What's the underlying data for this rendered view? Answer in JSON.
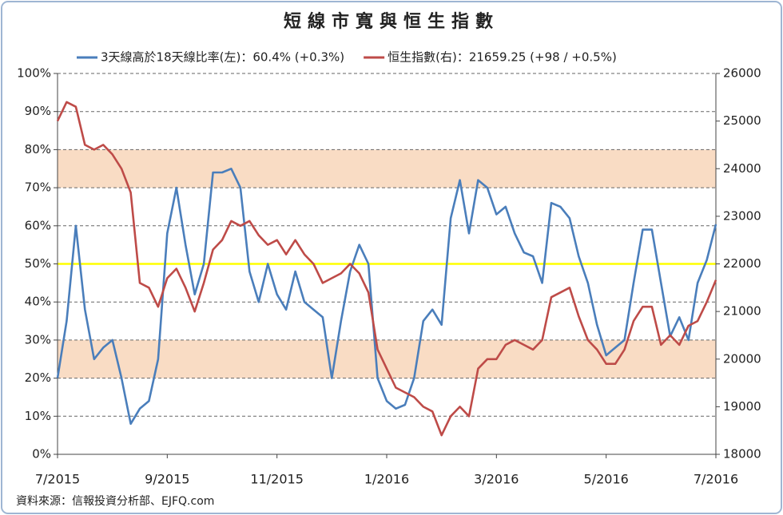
{
  "chart_data": {
    "type": "line",
    "title": "短線市寬與恒生指數",
    "source": "資料來源：信報投資分析部、EJFQ.com",
    "categories": [
      "7/2015",
      null,
      null,
      null,
      null,
      null,
      null,
      null,
      null,
      null,
      null,
      null,
      "9/2015",
      null,
      null,
      null,
      null,
      null,
      null,
      null,
      null,
      null,
      null,
      null,
      "11/2015",
      null,
      null,
      null,
      null,
      null,
      null,
      null,
      null,
      null,
      null,
      null,
      "1/2016",
      null,
      null,
      null,
      null,
      null,
      null,
      null,
      null,
      null,
      null,
      null,
      "3/2016",
      null,
      null,
      null,
      null,
      null,
      null,
      null,
      null,
      null,
      null,
      null,
      "5/2016",
      null,
      null,
      null,
      null,
      null,
      null,
      null,
      null,
      null,
      null,
      null,
      "7/2016"
    ],
    "series": [
      {
        "name": "3天線高於18天線比率(左)：60.4% (+0.3%)",
        "color": "#4a7ebb",
        "axis": "y",
        "values": [
          20,
          35,
          60,
          38,
          25,
          28,
          30,
          20,
          8,
          12,
          14,
          25,
          58,
          70,
          55,
          42,
          50,
          74,
          74,
          75,
          70,
          48,
          40,
          50,
          42,
          38,
          48,
          40,
          38,
          36,
          20,
          35,
          48,
          55,
          50,
          20,
          14,
          12,
          13,
          20,
          35,
          38,
          34,
          62,
          72,
          58,
          72,
          70,
          63,
          65,
          58,
          53,
          52,
          45,
          66,
          65,
          62,
          52,
          45,
          34,
          26,
          28,
          30,
          45,
          59,
          59,
          45,
          31,
          36,
          30,
          45,
          51,
          60.4
        ]
      },
      {
        "name": "恒生指數(右)：21659.25 (+98 / +0.5%)",
        "color": "#be4b48",
        "axis": "y2",
        "values": [
          25000,
          25400,
          25300,
          24500,
          24400,
          24500,
          24300,
          24000,
          23500,
          21600,
          21500,
          21100,
          21700,
          21900,
          21500,
          21000,
          21600,
          22300,
          22500,
          22900,
          22800,
          22900,
          22600,
          22400,
          22500,
          22200,
          22500,
          22200,
          22000,
          21600,
          21700,
          21800,
          22000,
          21800,
          21400,
          20200,
          19800,
          19400,
          19300,
          19200,
          19000,
          18900,
          18400,
          18800,
          19000,
          18800,
          19800,
          20000,
          20000,
          20300,
          20400,
          20300,
          20200,
          20400,
          21300,
          21400,
          21500,
          20900,
          20400,
          20200,
          19900,
          19900,
          20200,
          20800,
          21100,
          21100,
          20300,
          20500,
          20300,
          20700,
          20800,
          21200,
          21659.25
        ]
      }
    ],
    "ylim": [
      0,
      100
    ],
    "yticks": [
      {
        "value": 0,
        "label": "0%"
      },
      {
        "value": 10,
        "label": "10%"
      },
      {
        "value": 20,
        "label": "20%"
      },
      {
        "value": 30,
        "label": "30%"
      },
      {
        "value": 40,
        "label": "40%"
      },
      {
        "value": 50,
        "label": "50%"
      },
      {
        "value": 60,
        "label": "60%"
      },
      {
        "value": 70,
        "label": "70%"
      },
      {
        "value": 80,
        "label": "80%"
      },
      {
        "value": 90,
        "label": "90%"
      },
      {
        "value": 100,
        "label": "100%"
      }
    ],
    "y2lim": [
      18000,
      26000
    ],
    "y2ticks": [
      18000,
      19000,
      20000,
      21000,
      22000,
      23000,
      24000,
      25000,
      26000
    ],
    "bands": [
      [
        20,
        30
      ],
      [
        70,
        80
      ]
    ],
    "band_color": "#f9dcc4",
    "reference_line": 50,
    "reference_color": "#ffff00",
    "grid": true
  }
}
